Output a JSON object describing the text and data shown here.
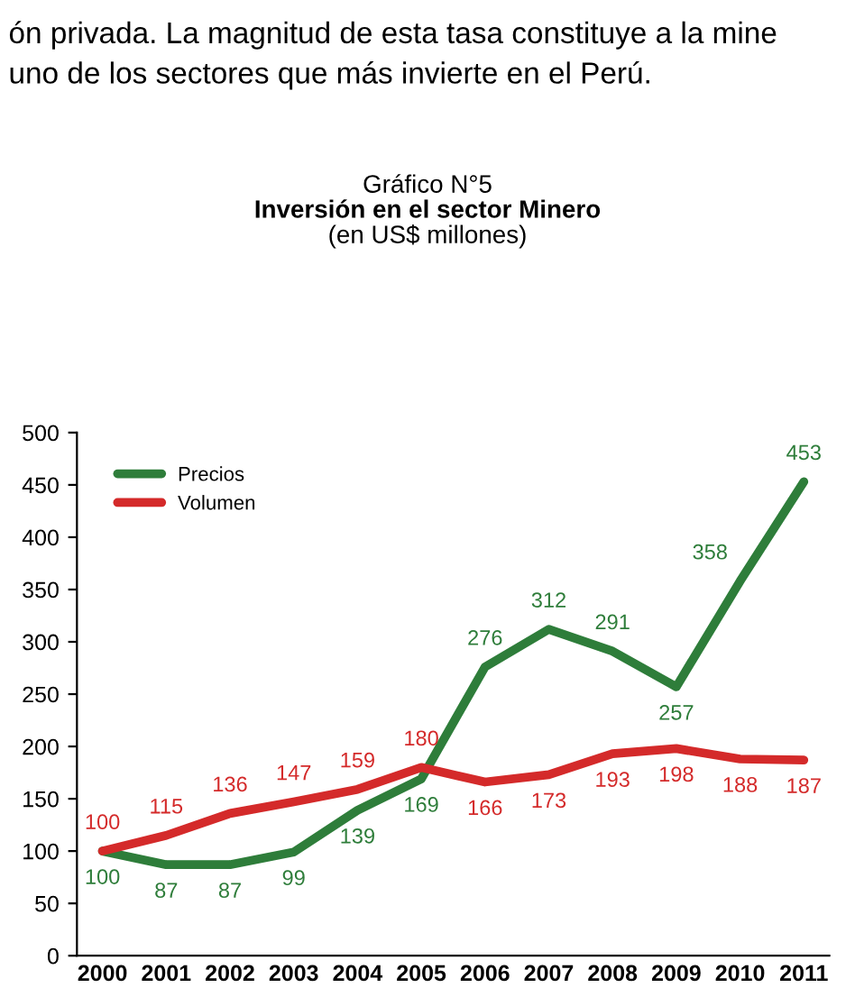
{
  "chart_data": {
    "type": "line",
    "title": "Inversión en el sector Minero",
    "subtitle": "(en US$ millones)",
    "annotations": [
      "ón privada. La magnitud de esta tasa constituye a la mine",
      "uno de los sectores que más invierte en el Perú.",
      "Gráfico N°5"
    ],
    "categories": [
      "2000",
      "2001",
      "2002",
      "2003",
      "2004",
      "2005",
      "2006",
      "2007",
      "2008",
      "2009",
      "2010",
      "2011"
    ],
    "series": [
      {
        "name": "Precios",
        "color": "#2e7d3a",
        "values": [
          100,
          87,
          87,
          99,
          139,
          169,
          276,
          312,
          291,
          257,
          358,
          453
        ]
      },
      {
        "name": "Volumen",
        "color": "#d42a2a",
        "values": [
          100,
          115,
          136,
          147,
          159,
          180,
          166,
          173,
          193,
          198,
          188,
          187
        ]
      }
    ],
    "ylim": [
      0,
      500
    ],
    "yticks": [
      0,
      50,
      100,
      150,
      200,
      250,
      300,
      350,
      400,
      450,
      500
    ],
    "grid": false,
    "legend": "top left",
    "data_labels": true,
    "marker": "none",
    "line_style": "solid"
  }
}
